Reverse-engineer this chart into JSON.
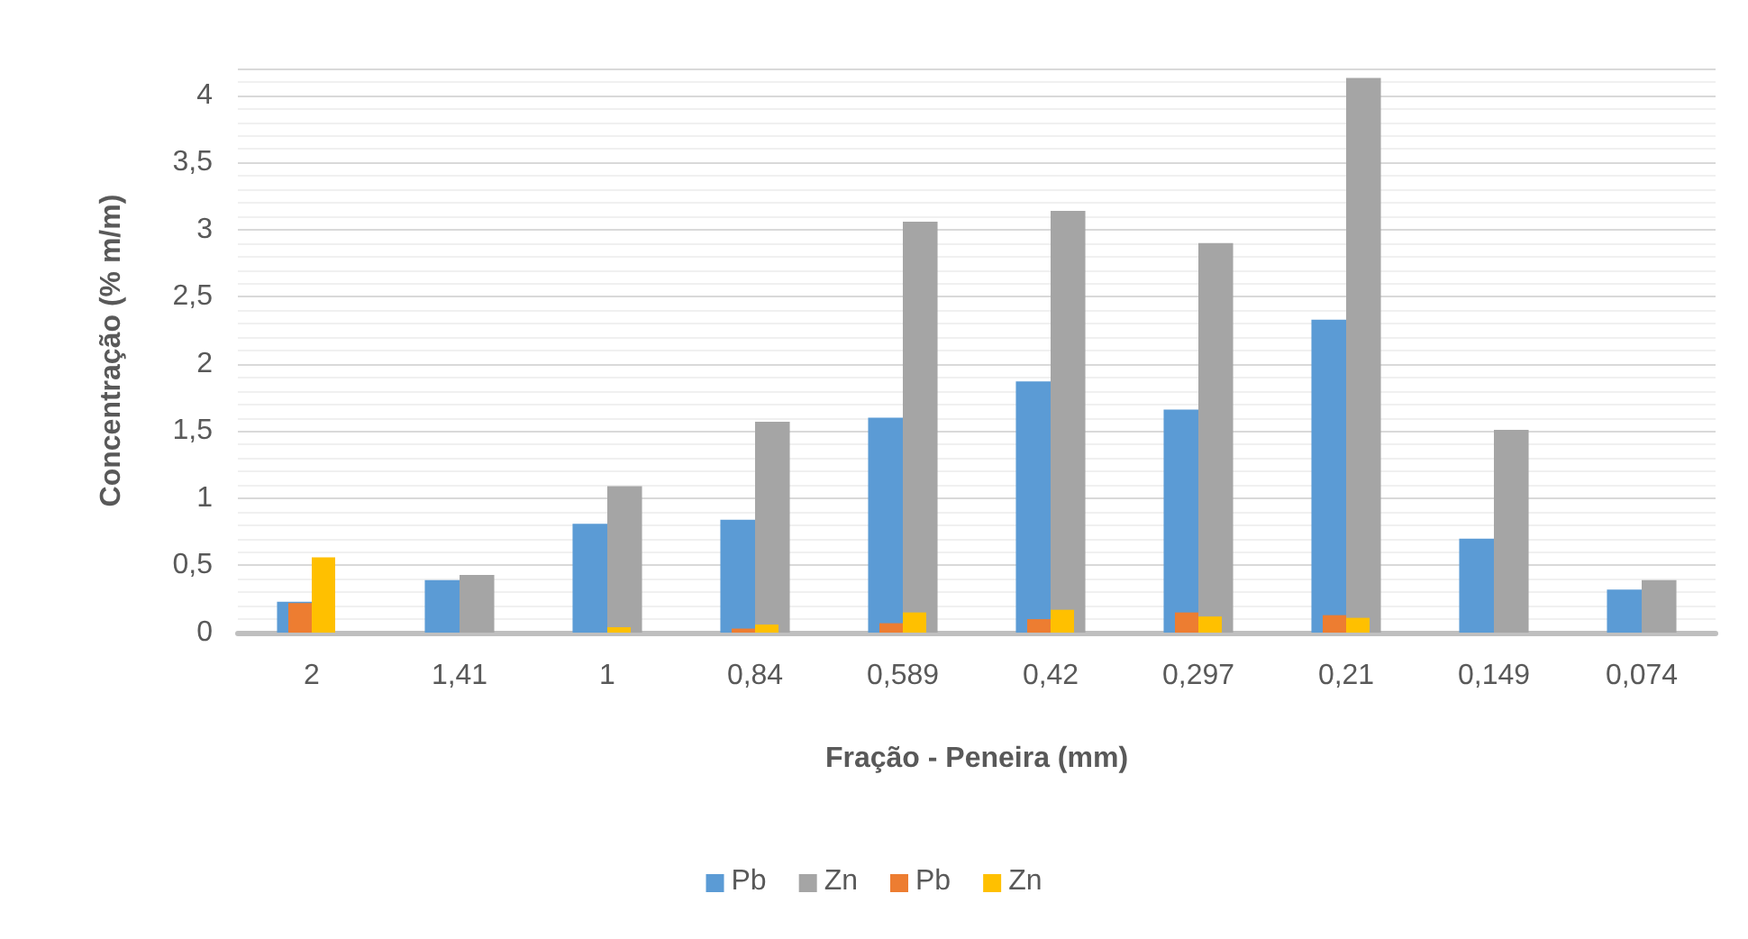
{
  "chart_data": {
    "type": "bar",
    "xlabel": "Fração - Peneira (mm)",
    "ylabel": "Concentração (% m/m)",
    "categories": [
      "2",
      "1,41",
      "1",
      "0,84",
      "0,589",
      "0,42",
      "0,297",
      "0,21",
      "0,149",
      "0,074"
    ],
    "series": [
      {
        "name": "Pb",
        "color": "#5b9bd5",
        "values": [
          0.23,
          0.39,
          0.81,
          0.84,
          1.6,
          1.87,
          1.66,
          2.33,
          0.7,
          0.32
        ]
      },
      {
        "name": "Zn",
        "color": "#a5a5a5",
        "values": [
          0,
          0.43,
          1.09,
          1.57,
          3.06,
          3.14,
          2.9,
          4.13,
          1.51,
          0.39
        ]
      },
      {
        "name": "Pb",
        "color": "#ed7d31",
        "values": [
          0.22,
          0,
          0,
          0.03,
          0.07,
          0.1,
          0.15,
          0.13,
          0,
          0
        ]
      },
      {
        "name": "Zn",
        "color": "#ffc000",
        "values": [
          0.56,
          0,
          0.04,
          0.06,
          0.15,
          0.17,
          0.12,
          0.11,
          0,
          0
        ]
      }
    ],
    "ylim": [
      0,
      4.2
    ],
    "yticks": [
      0,
      {
        "value": 0.5,
        "label": "0,5"
      },
      1,
      {
        "value": 1.5,
        "label": "1,5"
      },
      2,
      {
        "value": 2.5,
        "label": "2,5"
      },
      3,
      {
        "value": 3.5,
        "label": "3,5"
      },
      4
    ],
    "grid": true,
    "legend": "bottom"
  }
}
